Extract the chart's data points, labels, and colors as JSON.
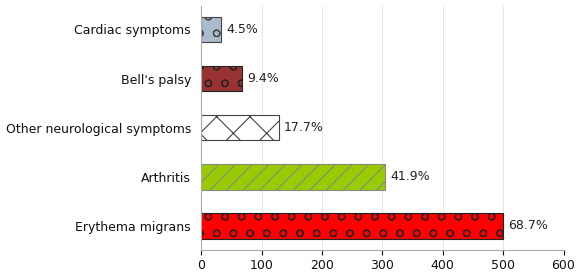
{
  "categories": [
    "Erythema migrans",
    "Arthritis",
    "Other neurological symptoms",
    "Bell's palsy",
    "Cardiac symptoms"
  ],
  "values": [
    500,
    305,
    129,
    68,
    33
  ],
  "percentages": [
    "68.7%",
    "41.9%",
    "17.7%",
    "9.4%",
    "4.5%"
  ],
  "bar_facecolors": [
    "#FF0000",
    "#99CC00",
    "#FFFFFF",
    "#993333",
    "#AABBCC"
  ],
  "bar_hatches": [
    "o",
    "//",
    "x",
    "o",
    "o"
  ],
  "bar_hatch_colors": [
    "#FFFFFF",
    "#99BB00",
    "#AABBDD",
    "#FFFFFF",
    "#FFFFFF"
  ],
  "bar_edgecolors": [
    "#222222",
    "#888888",
    "#444444",
    "#222222",
    "#444444"
  ],
  "xlim": [
    0,
    600
  ],
  "xticks": [
    0,
    100,
    200,
    300,
    400,
    500,
    600
  ],
  "text_fontsize": 9,
  "label_fontsize": 9,
  "background_color": "#FFFFFF",
  "bar_height": 0.52
}
